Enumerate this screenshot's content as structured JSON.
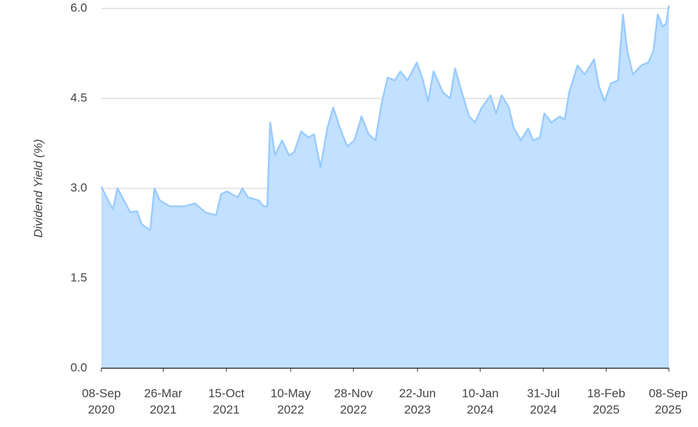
{
  "chart_data": {
    "type": "area",
    "y_label": "Dividend Yield (%)",
    "color": "#99ccff",
    "fill": "#c2e0ff",
    "grid": true,
    "xlim": [
      "2020-09-08",
      "2025-09-08"
    ],
    "xticks": [
      {
        "value": "2020-09-08",
        "label": "08-Sep 2020"
      },
      {
        "value": "2021-03-26",
        "label": "26-Mar 2021"
      },
      {
        "value": "2021-10-15",
        "label": "15-Oct 2021"
      },
      {
        "value": "2022-05-10",
        "label": "10-May 2022"
      },
      {
        "value": "2022-11-28",
        "label": "28-Nov 2022"
      },
      {
        "value": "2023-06-22",
        "label": "22-Jun 2023"
      },
      {
        "value": "2024-01-10",
        "label": "10-Jan 2024"
      },
      {
        "value": "2024-07-31",
        "label": "31-Jul 2024"
      },
      {
        "value": "2025-02-18",
        "label": "18-Feb 2025"
      },
      {
        "value": "2025-09-08",
        "label": "08-Sep 2025"
      }
    ],
    "ylim": [
      0,
      6
    ],
    "yticks": [
      {
        "value": 0,
        "label": "0.0"
      },
      {
        "value": 1.5,
        "label": "1.5"
      },
      {
        "value": 3,
        "label": "3.0"
      },
      {
        "value": 4.5,
        "label": "4.5"
      },
      {
        "value": 6,
        "label": "6.0"
      }
    ],
    "x": [
      "2020-09-08",
      "2020-09-25",
      "2020-10-15",
      "2020-10-30",
      "2020-11-20",
      "2020-12-10",
      "2021-01-01",
      "2021-01-16",
      "2021-02-12",
      "2021-02-26",
      "2021-03-15",
      "2021-04-17",
      "2021-06-02",
      "2021-07-06",
      "2021-08-09",
      "2021-09-12",
      "2021-09-28",
      "2021-10-17",
      "2021-11-20",
      "2021-12-06",
      "2021-12-24",
      "2022-01-27",
      "2022-02-12",
      "2022-02-24",
      "2022-03-05",
      "2022-03-21",
      "2022-04-12",
      "2022-05-05",
      "2022-05-21",
      "2022-06-13",
      "2022-07-06",
      "2022-07-24",
      "2022-08-14",
      "2022-09-05",
      "2022-09-24",
      "2022-10-16",
      "2022-11-08",
      "2022-12-01",
      "2022-12-24",
      "2023-01-16",
      "2023-02-07",
      "2023-02-26",
      "2023-03-18",
      "2023-04-10",
      "2023-04-28",
      "2023-05-21",
      "2023-06-20",
      "2023-07-10",
      "2023-07-26",
      "2023-08-13",
      "2023-09-12",
      "2023-10-05",
      "2023-10-21",
      "2023-11-12",
      "2023-12-05",
      "2023-12-24",
      "2024-01-15",
      "2024-02-12",
      "2024-03-01",
      "2024-03-19",
      "2024-04-11",
      "2024-04-27",
      "2024-05-20",
      "2024-06-12",
      "2024-06-28",
      "2024-07-20",
      "2024-08-03",
      "2024-08-26",
      "2024-09-22",
      "2024-10-08",
      "2024-10-22",
      "2024-11-18",
      "2024-12-11",
      "2025-01-10",
      "2025-01-26",
      "2025-02-13",
      "2025-03-05",
      "2025-03-28",
      "2025-04-13",
      "2025-04-27",
      "2025-05-15",
      "2025-06-11",
      "2025-07-04",
      "2025-07-20",
      "2025-08-03",
      "2025-08-19",
      "2025-08-30",
      "2025-09-08"
    ],
    "values": [
      3.03,
      2.85,
      2.65,
      3.0,
      2.8,
      2.6,
      2.62,
      2.4,
      2.3,
      3.0,
      2.8,
      2.7,
      2.7,
      2.75,
      2.6,
      2.55,
      2.9,
      2.95,
      2.85,
      3.0,
      2.85,
      2.8,
      2.7,
      2.7,
      4.1,
      3.55,
      3.8,
      3.55,
      3.6,
      3.95,
      3.85,
      3.9,
      3.35,
      4.0,
      4.35,
      4.0,
      3.7,
      3.8,
      4.2,
      3.9,
      3.8,
      4.4,
      4.85,
      4.8,
      4.95,
      4.8,
      5.1,
      4.8,
      4.45,
      4.95,
      4.6,
      4.5,
      5.0,
      4.6,
      4.2,
      4.1,
      4.35,
      4.55,
      4.25,
      4.55,
      4.35,
      4.0,
      3.8,
      4.0,
      3.8,
      3.85,
      4.25,
      4.1,
      4.2,
      4.15,
      4.6,
      5.05,
      4.9,
      5.15,
      4.7,
      4.45,
      4.75,
      4.8,
      5.9,
      5.3,
      4.9,
      5.05,
      5.1,
      5.3,
      5.9,
      5.7,
      5.75,
      6.05
    ]
  }
}
